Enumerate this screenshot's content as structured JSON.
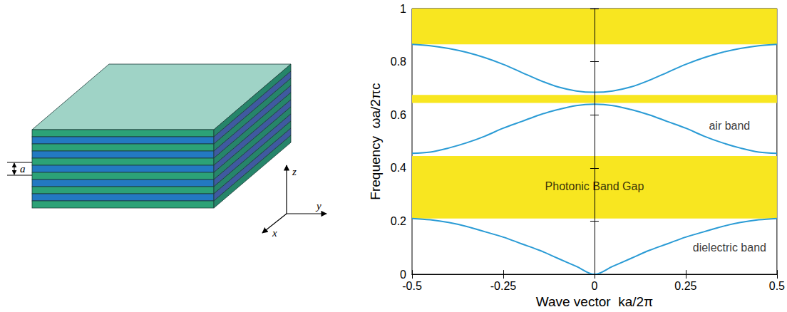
{
  "diagram": {
    "period_label": "a",
    "axis_labels": {
      "x": "x",
      "y": "y",
      "z": "z"
    }
  },
  "chart_data": {
    "type": "line",
    "x_label": "Wave vector  ka/2π",
    "y_label": "Frequency  ωa/2πc",
    "x": [
      -0.5,
      -0.45,
      -0.4,
      -0.35,
      -0.3,
      -0.25,
      -0.2,
      -0.15,
      -0.1,
      -0.05,
      0,
      0.05,
      0.1,
      0.15,
      0.2,
      0.25,
      0.3,
      0.35,
      0.4,
      0.45,
      0.5
    ],
    "series": [
      {
        "color": "#2a9bd5",
        "values": [
          0.21,
          0.205,
          0.195,
          0.18,
          0.16,
          0.14,
          0.115,
          0.09,
          0.06,
          0.03,
          0,
          0.03,
          0.06,
          0.09,
          0.115,
          0.14,
          0.16,
          0.18,
          0.195,
          0.205,
          0.21
        ]
      },
      {
        "color": "#2a9bd5",
        "values": [
          0.455,
          0.46,
          0.475,
          0.495,
          0.52,
          0.55,
          0.575,
          0.6,
          0.62,
          0.635,
          0.64,
          0.635,
          0.62,
          0.6,
          0.575,
          0.55,
          0.52,
          0.495,
          0.475,
          0.46,
          0.455
        ]
      },
      {
        "color": "#2a9bd5",
        "values": [
          0.865,
          0.86,
          0.85,
          0.835,
          0.815,
          0.79,
          0.76,
          0.73,
          0.705,
          0.69,
          0.685,
          0.69,
          0.705,
          0.73,
          0.76,
          0.79,
          0.815,
          0.835,
          0.85,
          0.86,
          0.865
        ]
      }
    ],
    "gaps": {
      "color": "#f8e620",
      "ranges": [
        [
          0.21,
          0.445
        ],
        [
          0.645,
          0.675
        ],
        [
          0.865,
          1
        ]
      ]
    },
    "annotations": [
      {
        "text": "Photonic Band Gap",
        "x": 0,
        "y": 0.33
      },
      {
        "text": "air band",
        "x": 0.37,
        "y": 0.56
      },
      {
        "text": "dielectric band",
        "x": 0.37,
        "y": 0.1
      }
    ],
    "vline_x": 0,
    "xlim": [
      -0.5,
      0.5
    ],
    "xticks": [
      -0.5,
      -0.25,
      0,
      0.25,
      0.5
    ],
    "ylim": [
      0,
      1
    ],
    "yticks": [
      0,
      0.2,
      0.4,
      0.6,
      0.8,
      1
    ],
    "grid": false
  }
}
